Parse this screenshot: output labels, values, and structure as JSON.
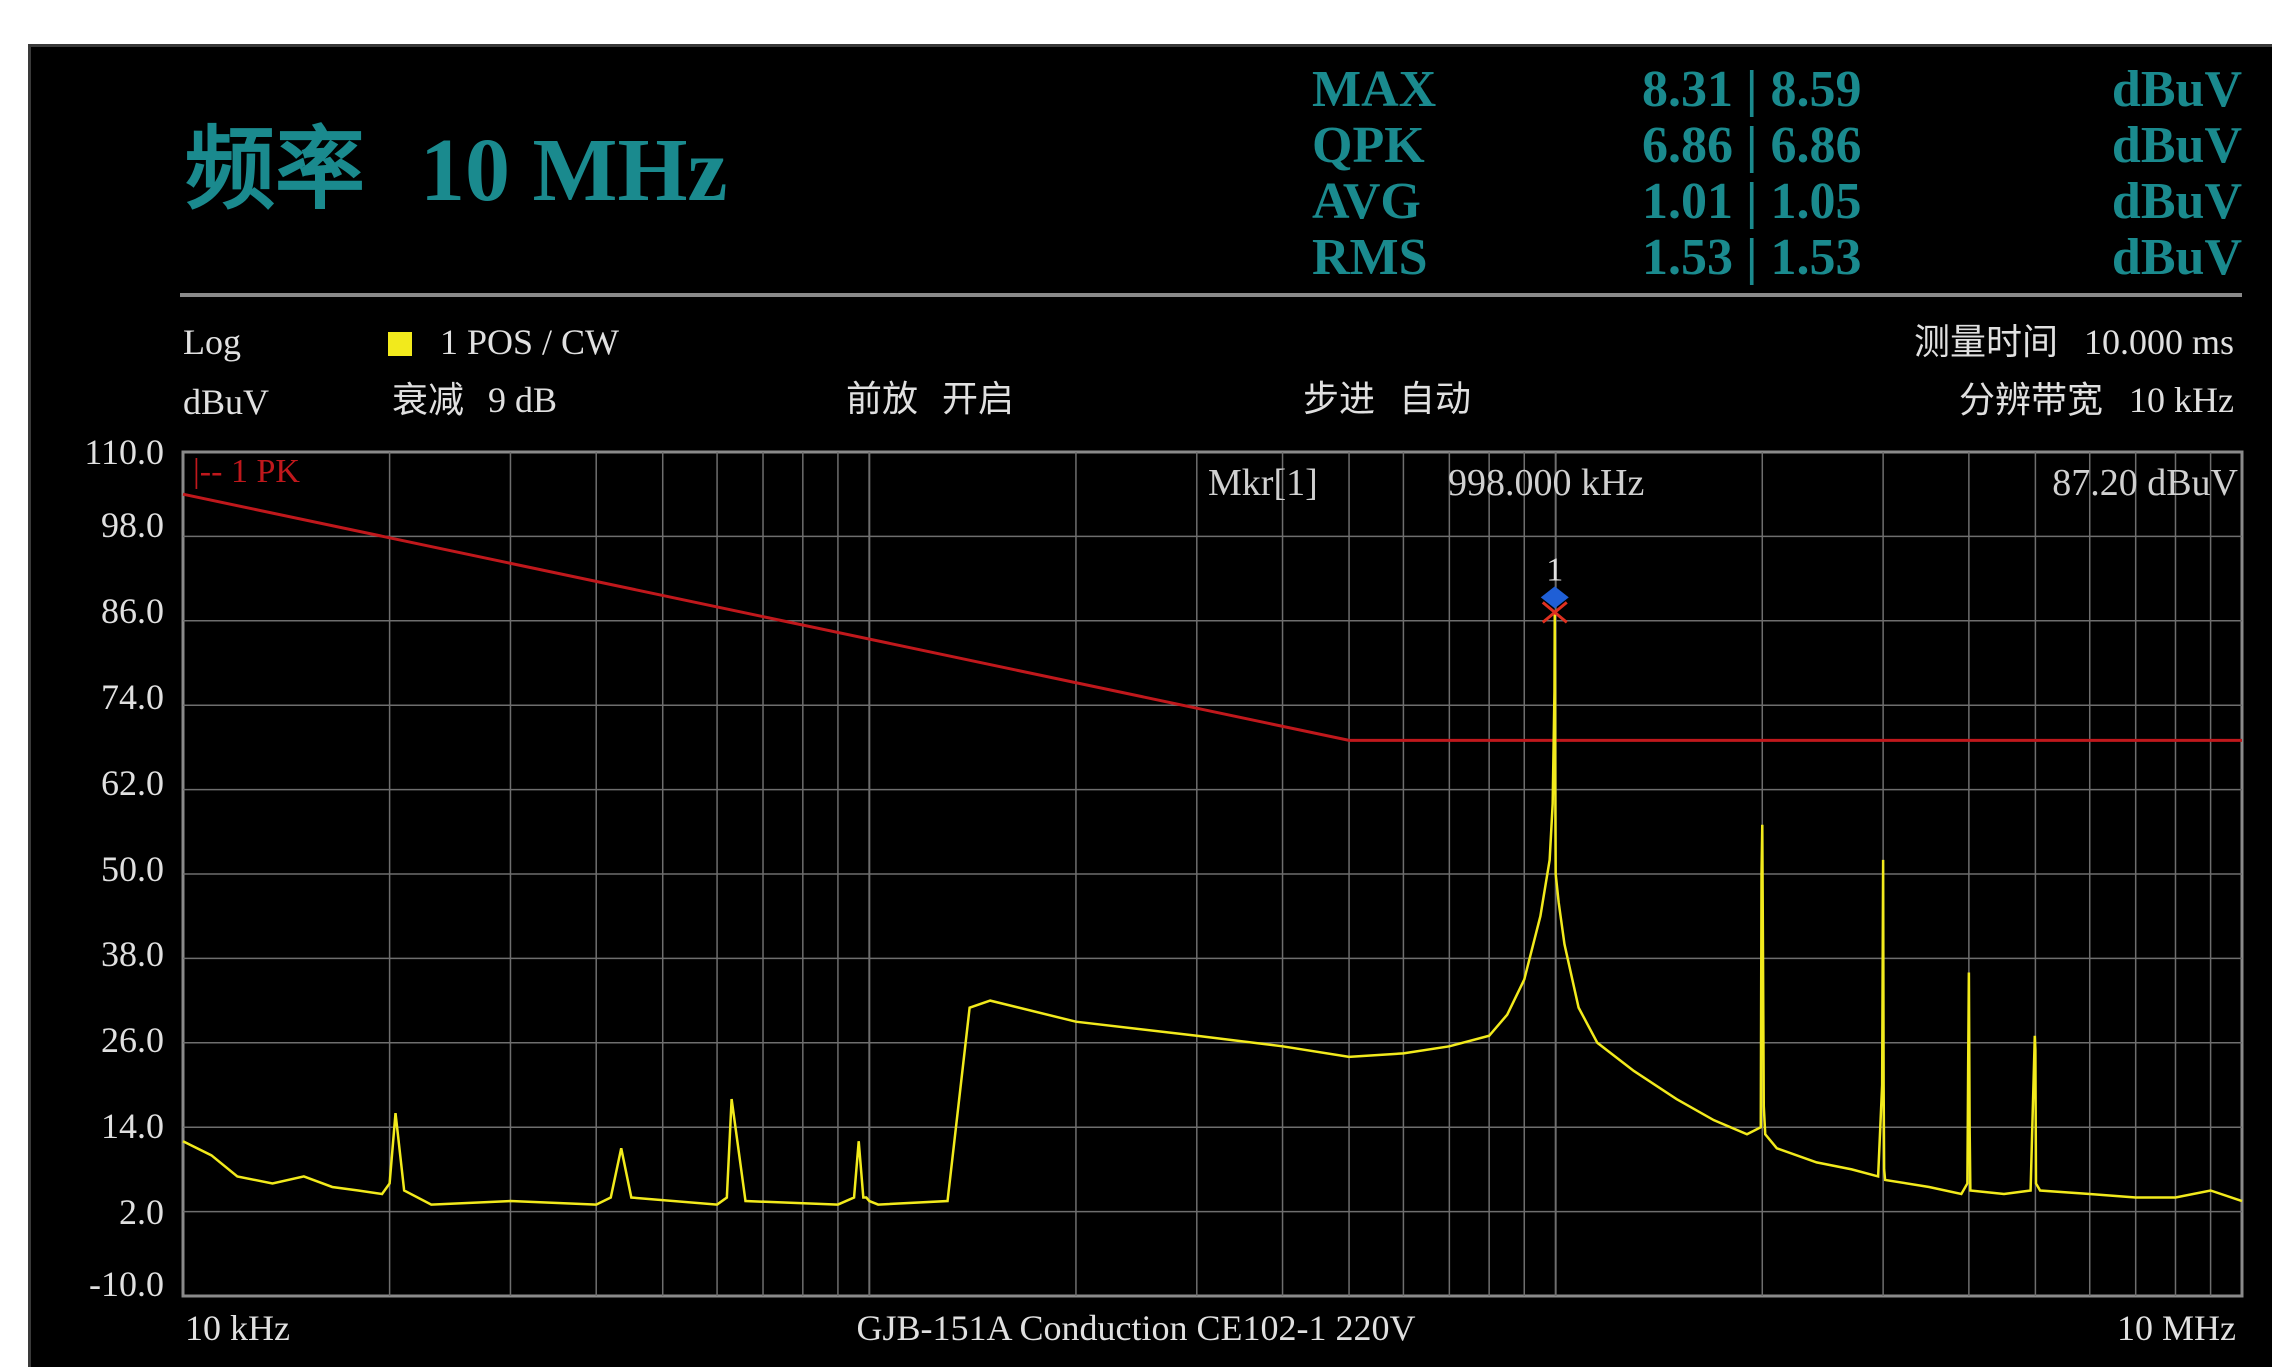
{
  "header": {
    "title_label": "频率",
    "title_value": "10 MHz",
    "measurements": [
      {
        "label": "MAX",
        "value": "8.31 | 8.59",
        "unit": "dBuV"
      },
      {
        "label": "QPK",
        "value": "6.86 | 6.86",
        "unit": "dBuV"
      },
      {
        "label": "AVG",
        "value": "1.01 | 1.05",
        "unit": "dBuV"
      },
      {
        "label": "RMS",
        "value": "1.53 | 1.53",
        "unit": "dBuV"
      }
    ]
  },
  "settings": {
    "scale": "Log",
    "unit": "dBuV",
    "trace": "1 POS / CW",
    "attenuation_label": "衰减",
    "attenuation_value": "9 dB",
    "preamp_label": "前放",
    "preamp_value": "开启",
    "step_label": "步进",
    "step_value": "自动",
    "meas_time_label": "测量时间",
    "meas_time_value": "10.000 ms",
    "rbw_label": "分辨带宽",
    "rbw_value": "10 kHz"
  },
  "marker": {
    "label": "Mkr[1]",
    "frequency": "998.000 kHz",
    "level": "87.20 dBuV",
    "id": "1"
  },
  "colors": {
    "background": "#000000",
    "title": "#1a8a8e",
    "trace": "#f2ea1c",
    "limit": "#c0181c",
    "grid": "#6e6e6e",
    "marker": "#1f5fd6"
  },
  "chart_data": {
    "type": "line",
    "xscale": "log",
    "xlim_hz": [
      10000,
      10000000
    ],
    "ylim": [
      -10,
      110
    ],
    "yticks": [
      "110.0",
      "98.0",
      "86.0",
      "74.0",
      "62.0",
      "50.0",
      "38.0",
      "26.0",
      "14.0",
      "2.0",
      "-10.0"
    ],
    "x_start_label": "10 kHz",
    "x_end_label": "10 MHz",
    "footer": "GJB-151A Conduction CE102-1 220V",
    "limit_label": "1 PK",
    "limit_line": {
      "x_hz": [
        10000,
        500000,
        10000000
      ],
      "y": [
        104,
        69,
        69
      ]
    },
    "trace": {
      "name": "1 POS / CW",
      "x_hz": [
        10000,
        11000,
        12000,
        13500,
        15000,
        16500,
        18000,
        19500,
        20000,
        20400,
        21000,
        23000,
        30000,
        40000,
        42000,
        43500,
        45000,
        60000,
        62000,
        63000,
        66000,
        90000,
        95000,
        96500,
        98000,
        99000,
        100000,
        103000,
        130000,
        140000,
        150000,
        200000,
        300000,
        400000,
        500000,
        600000,
        700000,
        800000,
        850000,
        900000,
        950000,
        980000,
        990000,
        996000,
        997000,
        998000,
        999000,
        1000000,
        1010000,
        1030000,
        1080000,
        1150000,
        1300000,
        1500000,
        1700000,
        1900000,
        1990000,
        1995000,
        2000000,
        2005000,
        2010000,
        2020000,
        2100000,
        2400000,
        2700000,
        2950000,
        2990000,
        3000000,
        3005000,
        3010000,
        3020000,
        3500000,
        3900000,
        3980000,
        3990000,
        4000000,
        4010000,
        4020000,
        4500000,
        4920000,
        4990000,
        5000000,
        5010000,
        5080000,
        6000000,
        7000000,
        8000000,
        9000000,
        10000000
      ],
      "y": [
        12,
        10,
        7,
        6,
        7,
        5.5,
        5,
        4.5,
        6,
        16,
        5,
        3,
        3.5,
        3,
        4,
        11,
        4,
        3,
        4,
        18,
        3.5,
        3,
        4,
        12,
        4,
        4,
        3.5,
        3,
        3.5,
        31,
        32,
        29,
        27,
        25.5,
        24,
        24.5,
        25.5,
        27,
        30,
        35,
        44,
        52,
        60,
        76,
        87.2,
        76,
        60,
        50,
        46,
        40,
        31,
        26,
        22,
        18,
        15,
        13,
        14,
        50,
        57,
        38,
        17,
        13,
        11,
        9,
        8,
        7,
        20,
        52,
        20,
        8,
        6.5,
        5.5,
        4.5,
        6,
        22,
        36,
        14,
        5,
        4.5,
        5,
        27,
        25,
        6,
        5,
        4.5,
        4,
        4,
        5,
        3.5
      ]
    }
  }
}
